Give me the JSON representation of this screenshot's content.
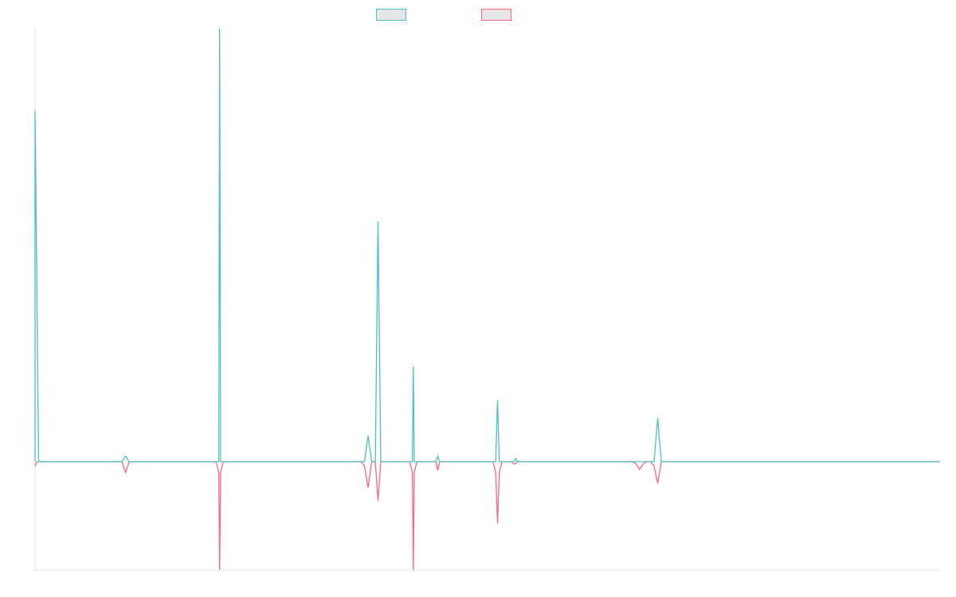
{
  "chart_data": {
    "type": "line",
    "title": "",
    "xlabel": "",
    "ylabel": "",
    "legend_position": "top-center",
    "grid": false,
    "x_range": [
      0,
      1000
    ],
    "ylim": [
      -1,
      4
    ],
    "series": [
      {
        "name": "",
        "color": "#4bc0c0",
        "points": [
          [
            0,
            0
          ],
          [
            0,
            3.24
          ],
          [
            4,
            0
          ],
          [
            96,
            0
          ],
          [
            100,
            0.05
          ],
          [
            104,
            0
          ],
          [
            200,
            0
          ],
          [
            203,
            0
          ],
          [
            204,
            4
          ],
          [
            205,
            0
          ],
          [
            208,
            0
          ],
          [
            360,
            0
          ],
          [
            364,
            0
          ],
          [
            368,
            0.24
          ],
          [
            372,
            0
          ],
          [
            376,
            0
          ],
          [
            379,
            2.22
          ],
          [
            382,
            0
          ],
          [
            414,
            0
          ],
          [
            417,
            0
          ],
          [
            418,
            0.88
          ],
          [
            419,
            0
          ],
          [
            422,
            0
          ],
          [
            440,
            0
          ],
          [
            443,
            0
          ],
          [
            445,
            0.05
          ],
          [
            447,
            0
          ],
          [
            506,
            0
          ],
          [
            509,
            0
          ],
          [
            511,
            0.57
          ],
          [
            513,
            0
          ],
          [
            516,
            0
          ],
          [
            526,
            0
          ],
          [
            529,
            0
          ],
          [
            531,
            0.03
          ],
          [
            533,
            0
          ],
          [
            660,
            0
          ],
          [
            664,
            0
          ],
          [
            668,
            0
          ],
          [
            672,
            0
          ],
          [
            676,
            0
          ],
          [
            680,
            0
          ],
          [
            684,
            0
          ],
          [
            688,
            0.4
          ],
          [
            692,
            0
          ],
          [
            1000,
            0
          ]
        ]
      },
      {
        "name": "",
        "color": "#ff6384",
        "points": [
          [
            0,
            -0.04
          ],
          [
            2,
            0
          ],
          [
            4,
            0
          ],
          [
            96,
            0
          ],
          [
            100,
            -0.1
          ],
          [
            104,
            0
          ],
          [
            200,
            0
          ],
          [
            203,
            -0.1
          ],
          [
            204,
            -1
          ],
          [
            205,
            -0.1
          ],
          [
            208,
            0
          ],
          [
            360,
            0
          ],
          [
            364,
            -0.04
          ],
          [
            368,
            -0.24
          ],
          [
            372,
            0
          ],
          [
            376,
            0
          ],
          [
            379,
            -0.36
          ],
          [
            382,
            0
          ],
          [
            414,
            0
          ],
          [
            417,
            -0.1
          ],
          [
            418,
            -1
          ],
          [
            419,
            -0.1
          ],
          [
            422,
            0
          ],
          [
            440,
            0
          ],
          [
            443,
            0
          ],
          [
            445,
            -0.08
          ],
          [
            447,
            0
          ],
          [
            506,
            0
          ],
          [
            509,
            -0.1
          ],
          [
            511,
            -0.57
          ],
          [
            513,
            -0.1
          ],
          [
            516,
            0
          ],
          [
            526,
            0
          ],
          [
            529,
            -0.02
          ],
          [
            531,
            -0.02
          ],
          [
            533,
            0
          ],
          [
            660,
            0
          ],
          [
            664,
            -0.02
          ],
          [
            668,
            -0.07
          ],
          [
            672,
            -0.02
          ],
          [
            676,
            0
          ],
          [
            680,
            0
          ],
          [
            684,
            -0.04
          ],
          [
            688,
            -0.2
          ],
          [
            692,
            0
          ],
          [
            1000,
            0
          ]
        ]
      }
    ]
  }
}
